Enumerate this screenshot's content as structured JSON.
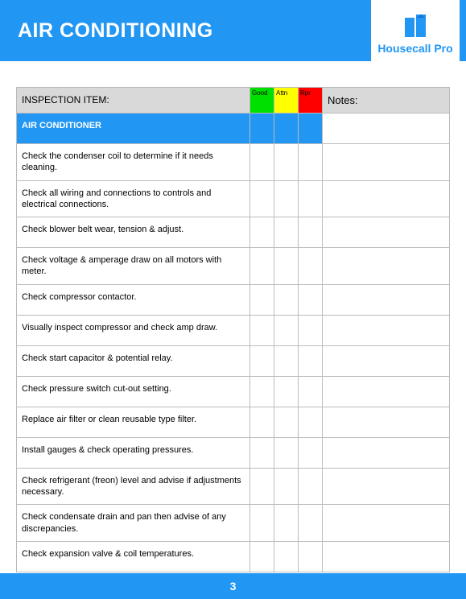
{
  "header": {
    "title": "AIR CONDITIONING",
    "brand": "Housecall Pro"
  },
  "table": {
    "columns": {
      "item": "INSPECTION ITEM:",
      "good": "Good",
      "attn": "Attn",
      "rpr": "Rpr",
      "notes": "Notes:"
    },
    "section_label": "AIR CONDITIONER",
    "rows": [
      "Check the condenser coil to determine if it needs cleaning.",
      "Check all wiring and connections to controls and electrical connections.",
      "Check blower belt wear, tension & adjust.",
      "Check voltage & amperage draw on all motors with meter.",
      "Check compressor contactor.",
      "Visually inspect compressor and check amp draw.",
      "Check start capacitor & potential relay.",
      "Check pressure switch cut-out setting.",
      "Replace air filter or clean reusable type filter.",
      "Install gauges & check operating pressures.",
      "Check refrigerant (freon) level and advise if adjustments necessary.",
      "Check condensate drain and pan then advise of any discrepancies.",
      "Check expansion valve & coil temperatures."
    ]
  },
  "footer": {
    "page_number": "3"
  },
  "colors": {
    "brand_blue": "#2196f3",
    "good": "#00e000",
    "attn": "#ffff00",
    "rpr": "#ff0000",
    "header_gray": "#d9d9d9"
  }
}
